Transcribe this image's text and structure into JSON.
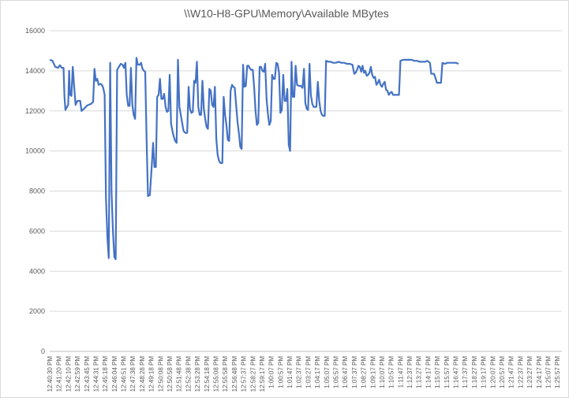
{
  "chart_data": {
    "type": "line",
    "title": "\\\\W10-H8-GPU\\Memory\\Available MBytes",
    "xlabel": "",
    "ylabel": "",
    "ylim": [
      0,
      16000
    ],
    "yticks": [
      0,
      2000,
      4000,
      6000,
      8000,
      10000,
      12000,
      14000,
      16000
    ],
    "grid": true,
    "legend": "none",
    "series_color": "#4472c4",
    "x_tick_labels": [
      "12:40:30 PM",
      "12:41:20 PM",
      "12:42:10 PM",
      "12:42:59 PM",
      "12:43:45 PM",
      "12:44:31 PM",
      "12:45:18 PM",
      "12:46:04 PM",
      "12:46:51 PM",
      "12:47:38 PM",
      "12:48:28 PM",
      "12:49:18 PM",
      "12:50:08 PM",
      "12:50:58 PM",
      "12:51:48 PM",
      "12:52:38 PM",
      "12:53:28 PM",
      "12:54:18 PM",
      "12:55:08 PM",
      "12:55:58 PM",
      "12:56:48 PM",
      "12:57:37 PM",
      "12:58:27 PM",
      "12:59:17 PM",
      "1:00:07 PM",
      "1:00:57 PM",
      "1:01:47 PM",
      "1:02:37 PM",
      "1:03:27 PM",
      "1:04:17 PM",
      "1:05:07 PM",
      "1:05:57 PM",
      "1:06:47 PM",
      "1:07:37 PM",
      "1:08:27 PM",
      "1:09:17 PM",
      "1:10:07 PM",
      "1:10:57 PM",
      "1:11:47 PM",
      "1:12:37 PM",
      "1:13:27 PM",
      "1:14:17 PM",
      "1:15:07 PM",
      "1:15:57 PM",
      "1:16:47 PM",
      "1:17:37 PM",
      "1:18:27 PM",
      "1:19:17 PM",
      "1:20:07 PM",
      "1:20:57 PM",
      "1:21:47 PM",
      "1:22:37 PM",
      "1:23:27 PM",
      "1:24:17 PM",
      "1:25:07 PM",
      "1:25:57 PM"
    ],
    "x_range": [
      0,
      55.5
    ],
    "points": [
      [
        0.0,
        14550
      ],
      [
        0.3,
        14500
      ],
      [
        0.6,
        14200
      ],
      [
        0.9,
        14150
      ],
      [
        1.1,
        14280
      ],
      [
        1.3,
        14150
      ],
      [
        1.5,
        14150
      ],
      [
        1.6,
        12700
      ],
      [
        1.7,
        12050
      ],
      [
        2.0,
        12300
      ],
      [
        2.1,
        14000
      ],
      [
        2.2,
        12800
      ],
      [
        2.35,
        12750
      ],
      [
        2.5,
        14200
      ],
      [
        2.65,
        13200
      ],
      [
        2.8,
        12300
      ],
      [
        3.0,
        12500
      ],
      [
        3.3,
        12500
      ],
      [
        3.45,
        12000
      ],
      [
        3.7,
        12100
      ],
      [
        4.0,
        12250
      ],
      [
        4.2,
        12300
      ],
      [
        4.5,
        12350
      ],
      [
        4.7,
        12450
      ],
      [
        4.85,
        14100
      ],
      [
        5.0,
        13500
      ],
      [
        5.15,
        13600
      ],
      [
        5.3,
        13300
      ],
      [
        5.5,
        13350
      ],
      [
        5.65,
        13300
      ],
      [
        5.8,
        13150
      ],
      [
        5.95,
        12800
      ],
      [
        6.1,
        7600
      ],
      [
        6.25,
        5700
      ],
      [
        6.4,
        4650
      ],
      [
        6.55,
        14400
      ],
      [
        6.7,
        8000
      ],
      [
        6.85,
        6000
      ],
      [
        7.0,
        4700
      ],
      [
        7.15,
        4600
      ],
      [
        7.3,
        14050
      ],
      [
        7.5,
        14200
      ],
      [
        7.7,
        14350
      ],
      [
        7.9,
        14300
      ],
      [
        8.05,
        14150
      ],
      [
        8.2,
        14400
      ],
      [
        8.35,
        12800
      ],
      [
        8.5,
        12250
      ],
      [
        8.65,
        12250
      ],
      [
        8.8,
        14150
      ],
      [
        8.95,
        12300
      ],
      [
        9.1,
        11800
      ],
      [
        9.25,
        11600
      ],
      [
        9.4,
        14650
      ],
      [
        9.55,
        14300
      ],
      [
        9.75,
        14300
      ],
      [
        9.9,
        14400
      ],
      [
        10.05,
        14100
      ],
      [
        10.2,
        14000
      ],
      [
        10.35,
        13950
      ],
      [
        10.5,
        10500
      ],
      [
        10.65,
        7750
      ],
      [
        10.85,
        7800
      ],
      [
        11.05,
        9200
      ],
      [
        11.2,
        10400
      ],
      [
        11.35,
        9200
      ],
      [
        11.5,
        9200
      ],
      [
        11.65,
        12700
      ],
      [
        11.8,
        12800
      ],
      [
        11.95,
        13600
      ],
      [
        12.1,
        12600
      ],
      [
        12.25,
        12600
      ],
      [
        12.4,
        12850
      ],
      [
        12.55,
        12200
      ],
      [
        12.7,
        11950
      ],
      [
        12.85,
        12000
      ],
      [
        13.0,
        13800
      ],
      [
        13.15,
        11350
      ],
      [
        13.3,
        11000
      ],
      [
        13.45,
        10700
      ],
      [
        13.6,
        10500
      ],
      [
        13.75,
        10400
      ],
      [
        13.9,
        14550
      ],
      [
        14.05,
        12200
      ],
      [
        14.2,
        11800
      ],
      [
        14.35,
        11400
      ],
      [
        14.5,
        11000
      ],
      [
        14.7,
        10900
      ],
      [
        14.9,
        10900
      ],
      [
        15.05,
        13200
      ],
      [
        15.2,
        12100
      ],
      [
        15.35,
        11900
      ],
      [
        15.5,
        11950
      ],
      [
        15.65,
        13500
      ],
      [
        15.8,
        13400
      ],
      [
        15.95,
        14450
      ],
      [
        16.1,
        12200
      ],
      [
        16.25,
        11800
      ],
      [
        16.4,
        11800
      ],
      [
        16.55,
        13500
      ],
      [
        16.7,
        12100
      ],
      [
        16.85,
        11600
      ],
      [
        17.0,
        11200
      ],
      [
        17.15,
        11100
      ],
      [
        17.3,
        13100
      ],
      [
        17.45,
        13000
      ],
      [
        17.6,
        12300
      ],
      [
        17.75,
        12200
      ],
      [
        17.9,
        13200
      ],
      [
        18.05,
        10600
      ],
      [
        18.2,
        9800
      ],
      [
        18.35,
        9500
      ],
      [
        18.5,
        9400
      ],
      [
        18.7,
        9400
      ],
      [
        18.85,
        12700
      ],
      [
        19.0,
        11800
      ],
      [
        19.15,
        11300
      ],
      [
        19.3,
        10550
      ],
      [
        19.45,
        10500
      ],
      [
        19.6,
        13000
      ],
      [
        19.75,
        13300
      ],
      [
        19.9,
        13200
      ],
      [
        20.05,
        13150
      ],
      [
        20.2,
        12300
      ],
      [
        20.35,
        11450
      ],
      [
        20.5,
        10900
      ],
      [
        20.65,
        10200
      ],
      [
        20.8,
        10100
      ],
      [
        20.95,
        14300
      ],
      [
        21.1,
        13200
      ],
      [
        21.25,
        13250
      ],
      [
        21.4,
        14250
      ],
      [
        21.55,
        14250
      ],
      [
        21.7,
        14100
      ],
      [
        21.85,
        14050
      ],
      [
        22.0,
        14050
      ],
      [
        22.15,
        13200
      ],
      [
        22.3,
        12000
      ],
      [
        22.45,
        11300
      ],
      [
        22.6,
        11400
      ],
      [
        22.75,
        14200
      ],
      [
        22.9,
        14200
      ],
      [
        23.05,
        14000
      ],
      [
        23.2,
        13950
      ],
      [
        23.35,
        14350
      ],
      [
        23.5,
        12600
      ],
      [
        23.65,
        11800
      ],
      [
        23.8,
        11300
      ],
      [
        23.95,
        11500
      ],
      [
        24.1,
        13800
      ],
      [
        24.25,
        13600
      ],
      [
        24.4,
        13600
      ],
      [
        24.55,
        14400
      ],
      [
        24.7,
        14350
      ],
      [
        24.85,
        13900
      ],
      [
        25.0,
        11900
      ],
      [
        25.15,
        12050
      ],
      [
        25.3,
        13800
      ],
      [
        25.45,
        12500
      ],
      [
        25.6,
        12500
      ],
      [
        25.75,
        13100
      ],
      [
        25.9,
        10300
      ],
      [
        26.05,
        10000
      ],
      [
        26.2,
        14450
      ],
      [
        26.35,
        12700
      ],
      [
        26.5,
        12700
      ],
      [
        26.65,
        14250
      ],
      [
        26.8,
        13300
      ],
      [
        27.0,
        13250
      ],
      [
        27.2,
        13250
      ],
      [
        27.4,
        13150
      ],
      [
        27.55,
        14100
      ],
      [
        27.7,
        12400
      ],
      [
        27.85,
        12100
      ],
      [
        28.0,
        12050
      ],
      [
        28.15,
        14350
      ],
      [
        28.3,
        12800
      ],
      [
        28.45,
        12350
      ],
      [
        28.6,
        12200
      ],
      [
        28.75,
        12200
      ],
      [
        28.9,
        12200
      ],
      [
        29.05,
        13450
      ],
      [
        29.2,
        12500
      ],
      [
        29.35,
        12000
      ],
      [
        29.5,
        11800
      ],
      [
        29.65,
        11750
      ],
      [
        29.8,
        11750
      ],
      [
        29.95,
        14500
      ],
      [
        30.2,
        14450
      ],
      [
        30.45,
        14450
      ],
      [
        30.7,
        14400
      ],
      [
        31.0,
        14400
      ],
      [
        31.3,
        14450
      ],
      [
        31.6,
        14400
      ],
      [
        31.9,
        14400
      ],
      [
        32.2,
        14350
      ],
      [
        32.5,
        14350
      ],
      [
        32.8,
        14300
      ],
      [
        33.0,
        13850
      ],
      [
        33.15,
        13900
      ],
      [
        33.3,
        14050
      ],
      [
        33.45,
        14250
      ],
      [
        33.6,
        14200
      ],
      [
        33.75,
        13950
      ],
      [
        33.9,
        14250
      ],
      [
        34.05,
        13900
      ],
      [
        34.2,
        14000
      ],
      [
        34.35,
        13750
      ],
      [
        34.5,
        13800
      ],
      [
        34.65,
        13900
      ],
      [
        34.8,
        14200
      ],
      [
        34.95,
        13800
      ],
      [
        35.1,
        13650
      ],
      [
        35.25,
        13700
      ],
      [
        35.4,
        13300
      ],
      [
        35.55,
        13400
      ],
      [
        35.7,
        13550
      ],
      [
        35.85,
        13300
      ],
      [
        36.0,
        13200
      ],
      [
        36.15,
        13350
      ],
      [
        36.3,
        13450
      ],
      [
        36.45,
        13050
      ],
      [
        36.6,
        13000
      ],
      [
        36.75,
        12800
      ],
      [
        36.9,
        12900
      ],
      [
        37.05,
        12950
      ],
      [
        37.2,
        12800
      ],
      [
        37.35,
        12800
      ],
      [
        37.6,
        12800
      ],
      [
        37.85,
        12800
      ],
      [
        38.0,
        14500
      ],
      [
        38.3,
        14550
      ],
      [
        38.6,
        14550
      ],
      [
        38.9,
        14550
      ],
      [
        39.2,
        14550
      ],
      [
        39.5,
        14500
      ],
      [
        39.8,
        14500
      ],
      [
        40.1,
        14450
      ],
      [
        40.4,
        14450
      ],
      [
        40.7,
        14450
      ],
      [
        40.9,
        14500
      ],
      [
        41.05,
        14450
      ],
      [
        41.2,
        14400
      ],
      [
        41.35,
        13850
      ],
      [
        41.5,
        13850
      ],
      [
        41.65,
        13850
      ],
      [
        41.8,
        13650
      ],
      [
        41.95,
        13400
      ],
      [
        42.1,
        13400
      ],
      [
        42.25,
        13400
      ],
      [
        42.4,
        13400
      ],
      [
        42.55,
        14400
      ],
      [
        42.8,
        14350
      ],
      [
        43.1,
        14400
      ],
      [
        43.4,
        14400
      ],
      [
        43.7,
        14400
      ],
      [
        44.0,
        14400
      ],
      [
        44.3,
        14350
      ]
    ]
  }
}
